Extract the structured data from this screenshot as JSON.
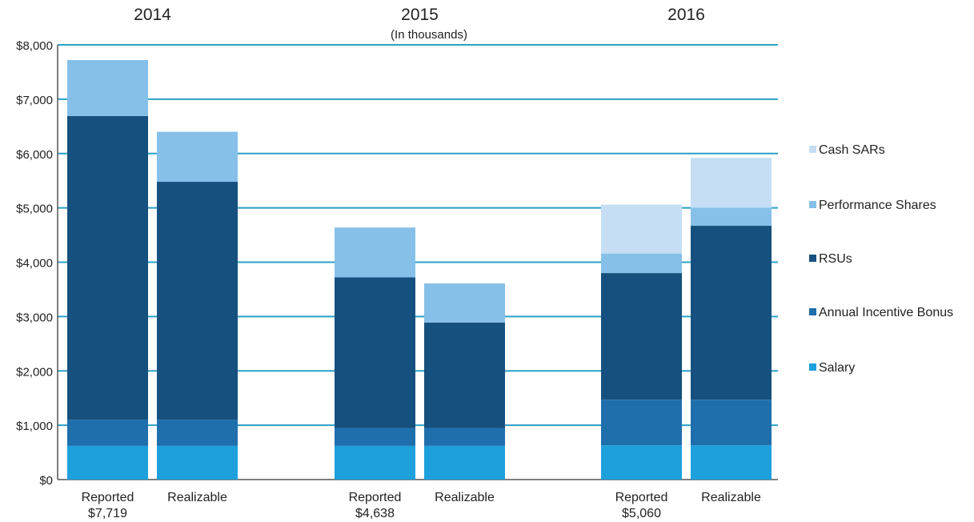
{
  "chart_data": {
    "type": "bar",
    "stacked": true,
    "subtitle": "(In thousands)",
    "y_ticks": [
      "$0",
      "$1,000",
      "$2,000",
      "$3,000",
      "$4,000",
      "$5,000",
      "$6,000",
      "$7,000",
      "$8,000"
    ],
    "ylim": [
      0,
      8000
    ],
    "grid": true,
    "legend_position": "right",
    "groups": [
      {
        "year": "2014",
        "bars": [
          {
            "label": "Reported",
            "total_label": "$7,719",
            "values": [
              620,
              480,
              5590,
              1030,
              0
            ]
          },
          {
            "label": "Realizable",
            "total_label": "",
            "values": [
              620,
              480,
              4380,
              920,
              0
            ]
          }
        ]
      },
      {
        "year": "2015",
        "bars": [
          {
            "label": "Reported",
            "total_label": "$4,638",
            "values": [
              620,
              330,
              2770,
              918,
              0
            ]
          },
          {
            "label": "Realizable",
            "total_label": "",
            "values": [
              620,
              330,
              1940,
              720,
              0
            ]
          }
        ]
      },
      {
        "year": "2016",
        "bars": [
          {
            "label": "Reported",
            "total_label": "$5,060",
            "values": [
              630,
              840,
              2330,
              360,
              900
            ]
          },
          {
            "label": "Realizable",
            "total_label": "",
            "values": [
              630,
              840,
              3200,
              330,
              920
            ]
          }
        ]
      }
    ],
    "series": [
      {
        "name": "Salary",
        "color": "#1ea0dc"
      },
      {
        "name": "Annual Incentive Bonus",
        "color": "#1f6fad"
      },
      {
        "name": "RSUs",
        "color": "#16507e"
      },
      {
        "name": "Performance Shares",
        "color": "#86c0e8"
      },
      {
        "name": "Cash SARs",
        "color": "#c5def4"
      }
    ],
    "legend_order": [
      "Cash SARs",
      "Performance Shares",
      "RSUs",
      "Annual Incentive Bonus",
      "Salary"
    ],
    "gridline_color": "#2aa0c8"
  }
}
